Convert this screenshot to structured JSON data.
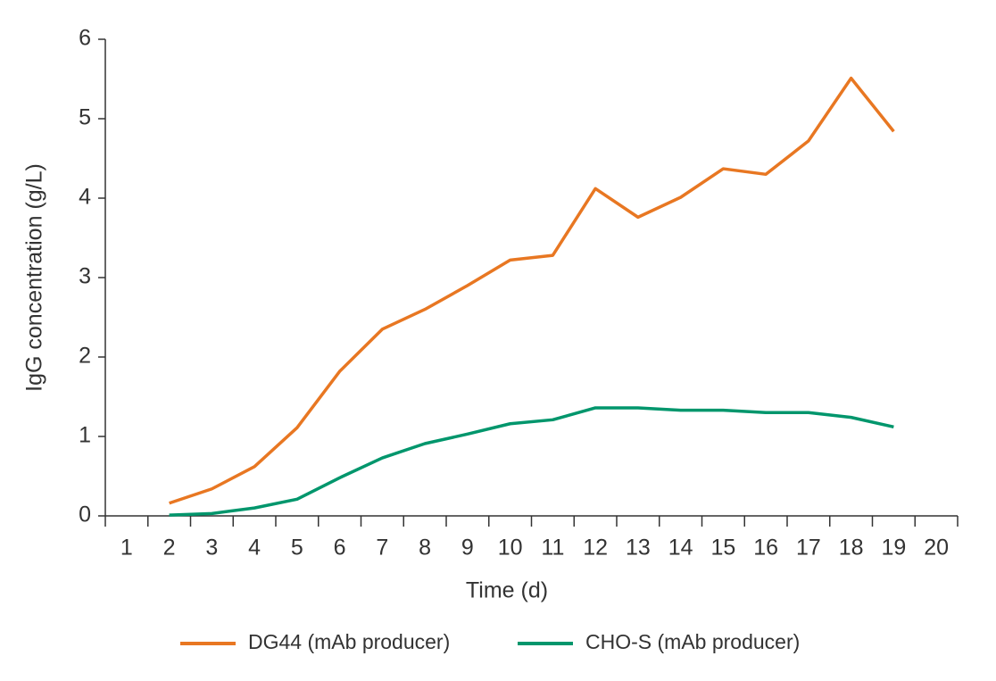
{
  "chart_data": {
    "type": "line",
    "x_label": "Time (d)",
    "y_label": "IgG concentration (g/L)",
    "categories": [
      "1",
      "2",
      "3",
      "4",
      "5",
      "6",
      "7",
      "8",
      "9",
      "10",
      "11",
      "12",
      "13",
      "14",
      "15",
      "16",
      "17",
      "18",
      "19",
      "20"
    ],
    "series": [
      {
        "name": "DG44 (mAb producer)",
        "color": "#e87722",
        "values": [
          null,
          0.16,
          0.34,
          0.62,
          1.11,
          1.82,
          2.35,
          2.6,
          2.9,
          3.22,
          3.28,
          4.12,
          3.76,
          4.01,
          4.37,
          4.3,
          4.72,
          5.51,
          4.84,
          null
        ]
      },
      {
        "name": "CHO-S (mAb producer)",
        "color": "#00966c",
        "values": [
          null,
          0.01,
          0.03,
          0.1,
          0.21,
          0.48,
          0.73,
          0.91,
          1.03,
          1.16,
          1.21,
          1.36,
          1.36,
          1.33,
          1.33,
          1.3,
          1.3,
          1.24,
          1.12,
          null
        ]
      }
    ],
    "ylim": [
      0,
      6
    ],
    "yticks": [
      0,
      1,
      2,
      3,
      4,
      5,
      6
    ],
    "grid": false,
    "legend": "bottom"
  }
}
